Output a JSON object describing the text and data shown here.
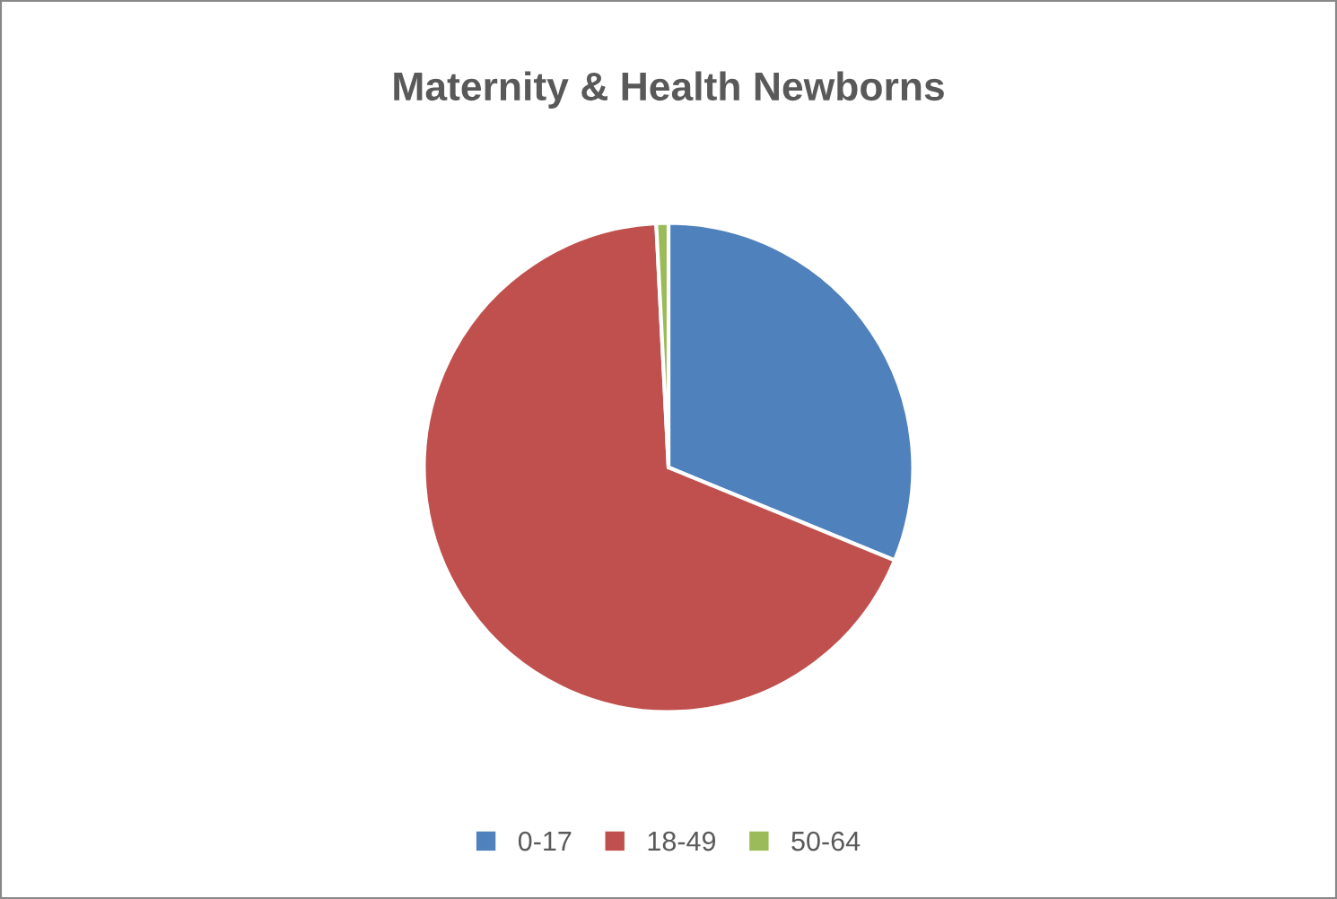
{
  "chart_data": {
    "type": "pie",
    "title": "Maternity & Health Newborns",
    "categories": [
      "0-17",
      "18-49",
      "50-64"
    ],
    "values": [
      31.2,
      68.0,
      0.8
    ],
    "colors": [
      "#4f81bd",
      "#c0504d",
      "#9bbb59"
    ],
    "legend": "bottom"
  }
}
